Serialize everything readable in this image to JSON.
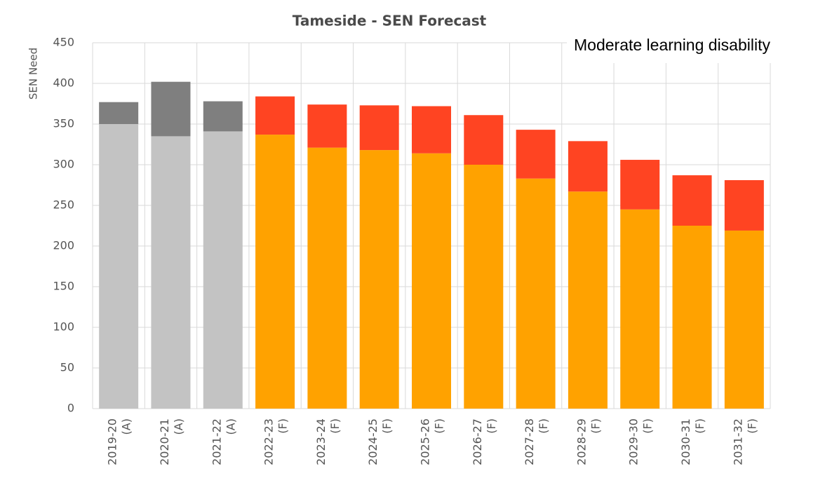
{
  "chart_data": {
    "type": "stacked_bar",
    "title": "Tameside - SEN Forecast",
    "y_label": "SEN Need",
    "annotation": "Moderate learning disability",
    "categories": [
      [
        "2019-20",
        "(A)"
      ],
      [
        "2020-21",
        "(A)"
      ],
      [
        "2021-22",
        "(A)"
      ],
      [
        "2022-23",
        "(F)"
      ],
      [
        "2023-24",
        "(F)"
      ],
      [
        "2024-25",
        "(F)"
      ],
      [
        "2025-26",
        "(F)"
      ],
      [
        "2026-27",
        "(F)"
      ],
      [
        "2027-28",
        "(F)"
      ],
      [
        "2028-29",
        "(F)"
      ],
      [
        "2029-30",
        "(F)"
      ],
      [
        "2030-31",
        "(F)"
      ],
      [
        "2031-32",
        "(F)"
      ]
    ],
    "series": [
      {
        "values": [
          350,
          335,
          341,
          337,
          321,
          318,
          314,
          300,
          283,
          267,
          245,
          225,
          219
        ],
        "colors": [
          "#c3c3c3",
          "#c3c3c3",
          "#c3c3c3",
          "#ffa200",
          "#ffa200",
          "#ffa200",
          "#ffa200",
          "#ffa200",
          "#ffa200",
          "#ffa200",
          "#ffa200",
          "#ffa200",
          "#ffa200"
        ]
      },
      {
        "values": [
          27,
          67,
          37,
          47,
          53,
          55,
          58,
          61,
          60,
          62,
          61,
          62,
          62
        ],
        "colors": [
          "#7f7f7f",
          "#7f7f7f",
          "#7f7f7f",
          "#ff4422",
          "#ff4422",
          "#ff4422",
          "#ff4422",
          "#ff4422",
          "#ff4422",
          "#ff4422",
          "#ff4422",
          "#ff4422",
          "#ff4422"
        ]
      }
    ],
    "ylim": [
      0,
      450
    ],
    "yticks": [
      0,
      50,
      100,
      150,
      200,
      250,
      300,
      350,
      400,
      450
    ],
    "grid": true
  }
}
